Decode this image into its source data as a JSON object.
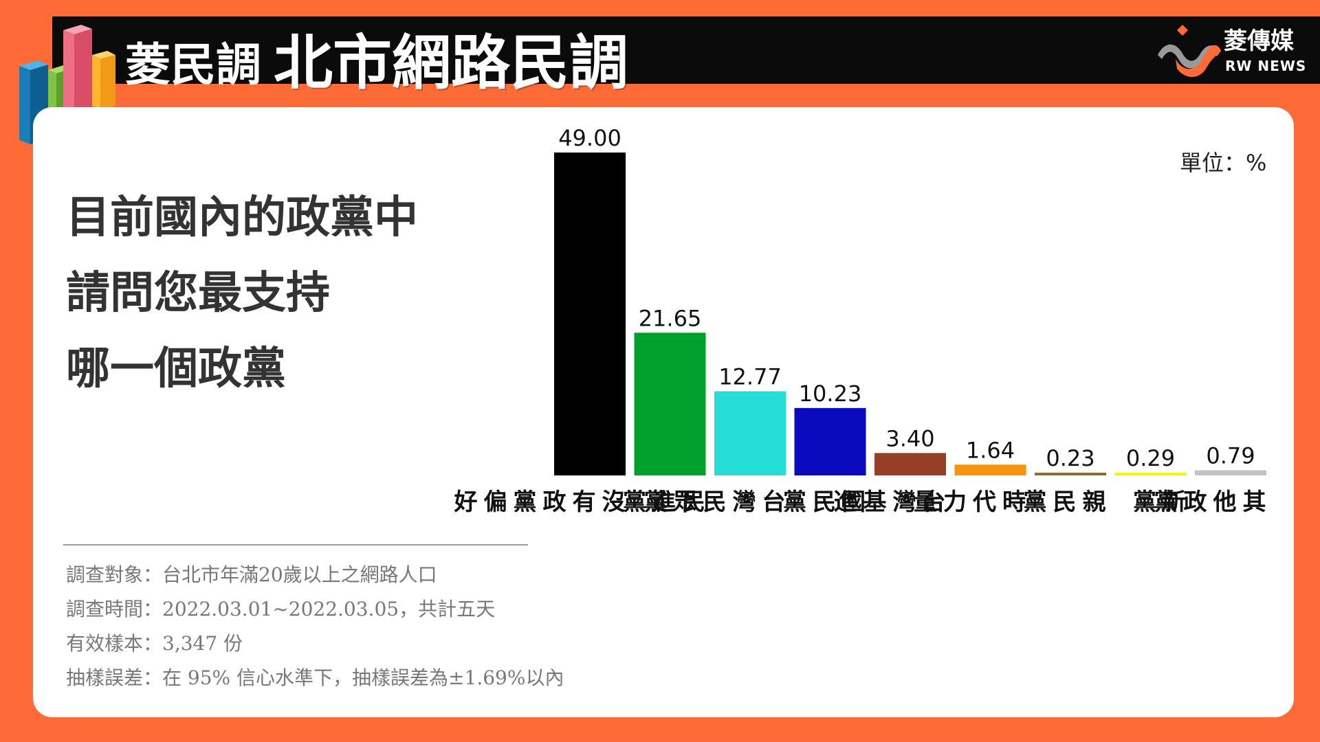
{
  "header": {
    "title_small": "菱民調",
    "title_main": "北市網路民調",
    "brand_name": "菱傳媒",
    "brand_en": "RW NEWS"
  },
  "question": {
    "lines": [
      "目前國內的政黨中",
      "請問您最支持",
      "哪一個政黨"
    ]
  },
  "survey_info": {
    "subject": "調查對象：台北市年滿20歲以上之網路人口",
    "period": "調查時間：2022.03.01~2022.03.05，共計五天",
    "sample": "有效樣本：3,347 份",
    "error": "抽樣誤差：在 95% 信心水準下，抽樣誤差為±1.69%以內"
  },
  "unit_label": "單位：%",
  "colors": {
    "background": "#FF6B37",
    "header_bar": "#0b0b0b",
    "card": "#ffffff"
  },
  "chart_data": {
    "type": "bar",
    "categories": [
      "沒有政黨偏好",
      "民進黨",
      "台灣民眾黨",
      "國民黨",
      "台灣基進",
      "時代力量",
      "親民黨",
      "新黨",
      "其他政黨"
    ],
    "values": [
      49.0,
      21.65,
      12.77,
      10.23,
      3.4,
      1.64,
      0.23,
      0.29,
      0.79
    ],
    "value_labels": [
      "49.00",
      "21.65",
      "12.77",
      "10.23",
      "3.40",
      "1.64",
      "0.23",
      "0.29",
      "0.79"
    ],
    "colors": [
      "#000000",
      "#00A02A",
      "#26DDD7",
      "#0A0ABF",
      "#953F28",
      "#F7940F",
      "#8C6C33",
      "#F5F50A",
      "#C3C3C3"
    ],
    "ylim": [
      0,
      49
    ],
    "title": "",
    "xlabel": "",
    "ylabel": "",
    "grid": false
  }
}
